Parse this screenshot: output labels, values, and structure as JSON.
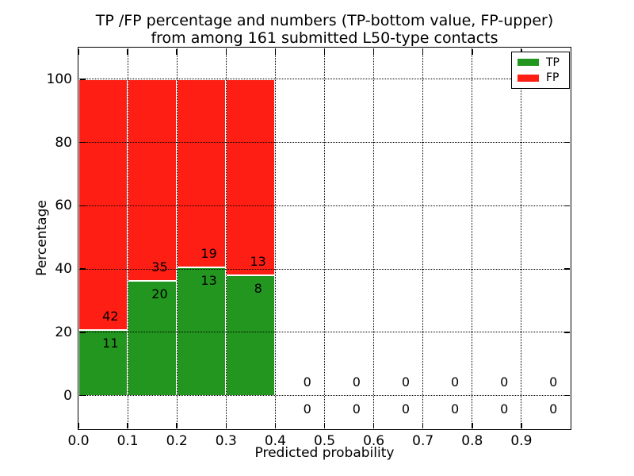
{
  "chart_data": {
    "type": "bar",
    "stacked": true,
    "title": "TP /FP percentage and numbers (TP-bottom value, FP-upper)",
    "subtitle": "from among 161 submitted L50-type contacts",
    "xlabel": "Predicted probability",
    "ylabel": "Percentage",
    "xlim": [
      0.0,
      1.0
    ],
    "ylim": [
      -10.6,
      110
    ],
    "grid": true,
    "xticks": [
      {
        "value": 0.0,
        "label": "0.0"
      },
      {
        "value": 0.1,
        "label": "0.1"
      },
      {
        "value": 0.2,
        "label": "0.2"
      },
      {
        "value": 0.3,
        "label": "0.3"
      },
      {
        "value": 0.4,
        "label": "0.4"
      },
      {
        "value": 0.5,
        "label": "0.5"
      },
      {
        "value": 0.6,
        "label": "0.6"
      },
      {
        "value": 0.7,
        "label": "0.7"
      },
      {
        "value": 0.8,
        "label": "0.8"
      },
      {
        "value": 0.9,
        "label": "0.9"
      }
    ],
    "yticks": [
      {
        "value": 0,
        "label": "0"
      },
      {
        "value": 20,
        "label": "20"
      },
      {
        "value": 40,
        "label": "40"
      },
      {
        "value": 60,
        "label": "60"
      },
      {
        "value": 80,
        "label": "80"
      },
      {
        "value": 100,
        "label": "100"
      }
    ],
    "legend": {
      "position": "upper right",
      "entries": [
        {
          "label": "TP",
          "color": "#22961E"
        },
        {
          "label": "FP",
          "color": "#FF1E14"
        }
      ]
    },
    "bins": [
      {
        "x0": 0.0,
        "x1": 0.1,
        "tp": 11,
        "fp": 42,
        "tp_pct": 20.75,
        "fp_pct": 79.25
      },
      {
        "x0": 0.1,
        "x1": 0.2,
        "tp": 20,
        "fp": 35,
        "tp_pct": 36.36,
        "fp_pct": 63.64
      },
      {
        "x0": 0.2,
        "x1": 0.3,
        "tp": 13,
        "fp": 19,
        "tp_pct": 40.63,
        "fp_pct": 59.37
      },
      {
        "x0": 0.3,
        "x1": 0.4,
        "tp": 8,
        "fp": 13,
        "tp_pct": 38.1,
        "fp_pct": 61.9
      },
      {
        "x0": 0.4,
        "x1": 0.5,
        "tp": 0,
        "fp": 0,
        "tp_pct": 0,
        "fp_pct": 0
      },
      {
        "x0": 0.5,
        "x1": 0.6,
        "tp": 0,
        "fp": 0,
        "tp_pct": 0,
        "fp_pct": 0
      },
      {
        "x0": 0.6,
        "x1": 0.7,
        "tp": 0,
        "fp": 0,
        "tp_pct": 0,
        "fp_pct": 0
      },
      {
        "x0": 0.7,
        "x1": 0.8,
        "tp": 0,
        "fp": 0,
        "tp_pct": 0,
        "fp_pct": 0
      },
      {
        "x0": 0.8,
        "x1": 0.9,
        "tp": 0,
        "fp": 0,
        "tp_pct": 0,
        "fp_pct": 0
      },
      {
        "x0": 0.9,
        "x1": 1.0,
        "tp": 0,
        "fp": 0,
        "tp_pct": 0,
        "fp_pct": 0
      }
    ]
  }
}
